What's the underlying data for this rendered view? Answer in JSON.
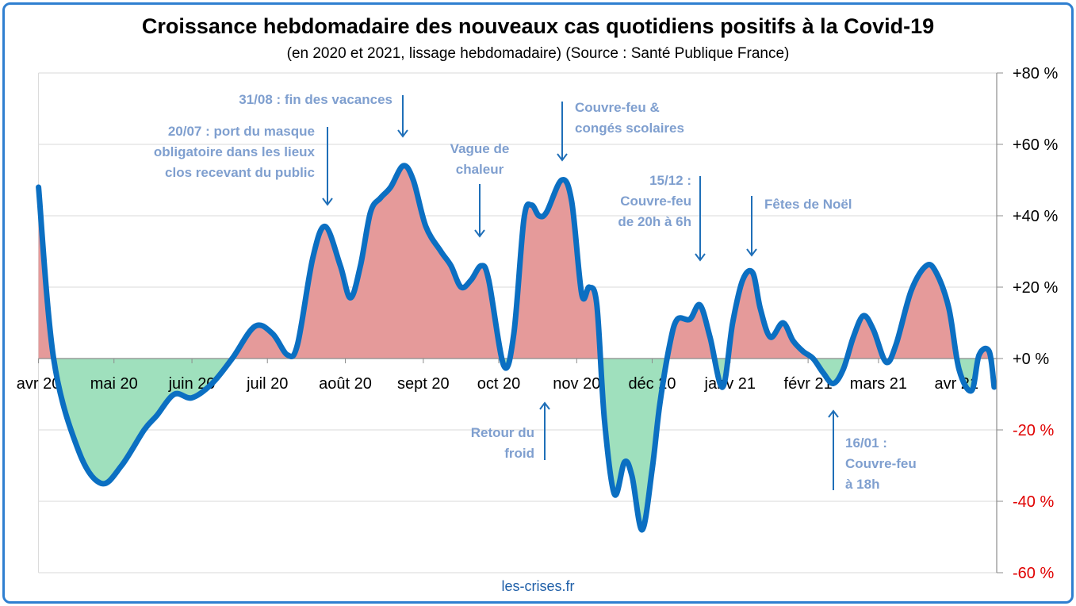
{
  "colors": {
    "line": "#0b6fc2",
    "positive_fill": "#e59a9a",
    "negative_fill": "#9fe0bd",
    "annotation_text": "#7f9fcf",
    "arrow": "#1f6fb8",
    "negative_tick_label": "#e00000",
    "frame": "#2f7fd0"
  },
  "chart_data": {
    "type": "area",
    "title": "Croissance hebdomadaire des nouveaux cas quotidiens positifs à la Covid-19",
    "subtitle": "(en 2020 et 2021, lissage hebdomadaire) (Source : Santé Publique France)",
    "xlabel": "",
    "ylabel": "",
    "ylim": [
      -60,
      80
    ],
    "xlim": [
      "2020-04-01",
      "2021-04-17"
    ],
    "y_axis_position": "right",
    "grid": true,
    "legend": "none",
    "y_ticks": [
      "+80 %",
      "+60 %",
      "+40 %",
      "+20 %",
      "+0 %",
      "-20 %",
      "-40 %",
      "-60 %"
    ],
    "y_tick_values": [
      80,
      60,
      40,
      20,
      0,
      -20,
      -40,
      -60
    ],
    "x_ticks": [
      "avr 20",
      "mai 20",
      "juin 20",
      "juil 20",
      "août 20",
      "sept 20",
      "oct 20",
      "nov 20",
      "déc 20",
      "janv 21",
      "févr 21",
      "mars 21",
      "avr 21"
    ],
    "x_tick_dates": [
      "2020-04-01",
      "2020-05-01",
      "2020-06-01",
      "2020-07-01",
      "2020-08-01",
      "2020-09-01",
      "2020-10-01",
      "2020-11-01",
      "2020-12-01",
      "2021-01-01",
      "2021-02-01",
      "2021-03-01",
      "2021-04-01"
    ],
    "series": [
      {
        "points": [
          [
            "2020-04-01",
            48
          ],
          [
            "2020-04-07",
            0
          ],
          [
            "2020-04-17",
            -26
          ],
          [
            "2020-04-26",
            -35
          ],
          [
            "2020-05-04",
            -30
          ],
          [
            "2020-05-13",
            -20
          ],
          [
            "2020-05-18",
            -16
          ],
          [
            "2020-05-25",
            -10
          ],
          [
            "2020-06-01",
            -11
          ],
          [
            "2020-06-09",
            -7
          ],
          [
            "2020-06-17",
            0
          ],
          [
            "2020-06-26",
            9
          ],
          [
            "2020-07-03",
            7
          ],
          [
            "2020-07-09",
            1
          ],
          [
            "2020-07-13",
            4
          ],
          [
            "2020-07-19",
            28
          ],
          [
            "2020-07-24",
            37
          ],
          [
            "2020-07-30",
            26
          ],
          [
            "2020-08-03",
            17
          ],
          [
            "2020-08-07",
            26
          ],
          [
            "2020-08-11",
            41
          ],
          [
            "2020-08-15",
            45
          ],
          [
            "2020-08-19",
            48
          ],
          [
            "2020-08-24",
            54
          ],
          [
            "2020-08-28",
            50
          ],
          [
            "2020-09-02",
            37
          ],
          [
            "2020-09-08",
            30
          ],
          [
            "2020-09-12",
            26
          ],
          [
            "2020-09-16",
            20
          ],
          [
            "2020-09-20",
            22
          ],
          [
            "2020-09-24",
            26
          ],
          [
            "2020-09-27",
            22
          ],
          [
            "2020-10-03",
            -2
          ],
          [
            "2020-10-07",
            7
          ],
          [
            "2020-10-11",
            39
          ],
          [
            "2020-10-14",
            43
          ],
          [
            "2020-10-17",
            40
          ],
          [
            "2020-10-20",
            41
          ],
          [
            "2020-10-26",
            50
          ],
          [
            "2020-10-30",
            44
          ],
          [
            "2020-11-03",
            18
          ],
          [
            "2020-11-06",
            20
          ],
          [
            "2020-11-09",
            15
          ],
          [
            "2020-11-12",
            -17
          ],
          [
            "2020-11-16",
            -38
          ],
          [
            "2020-11-20",
            -29
          ],
          [
            "2020-11-23",
            -33
          ],
          [
            "2020-11-27",
            -48
          ],
          [
            "2020-12-01",
            -31
          ],
          [
            "2020-12-04",
            -13
          ],
          [
            "2020-12-08",
            4
          ],
          [
            "2020-12-11",
            11
          ],
          [
            "2020-12-16",
            11
          ],
          [
            "2020-12-20",
            15
          ],
          [
            "2020-12-24",
            6
          ],
          [
            "2020-12-29",
            -8
          ],
          [
            "2021-01-02",
            10
          ],
          [
            "2021-01-06",
            22
          ],
          [
            "2021-01-10",
            24
          ],
          [
            "2021-01-13",
            14
          ],
          [
            "2021-01-17",
            6
          ],
          [
            "2021-01-22",
            10
          ],
          [
            "2021-01-26",
            5
          ],
          [
            "2021-01-30",
            2
          ],
          [
            "2021-02-03",
            0
          ],
          [
            "2021-02-07",
            -4
          ],
          [
            "2021-02-11",
            -7
          ],
          [
            "2021-02-15",
            -3
          ],
          [
            "2021-02-19",
            6
          ],
          [
            "2021-02-23",
            12
          ],
          [
            "2021-02-27",
            8
          ],
          [
            "2021-03-04",
            -1
          ],
          [
            "2021-03-08",
            4
          ],
          [
            "2021-03-14",
            19
          ],
          [
            "2021-03-20",
            26
          ],
          [
            "2021-03-24",
            24
          ],
          [
            "2021-03-29",
            14
          ],
          [
            "2021-04-02",
            -3
          ],
          [
            "2021-04-07",
            -9
          ],
          [
            "2021-04-10",
            1
          ],
          [
            "2021-04-14",
            2
          ],
          [
            "2021-04-16",
            -8
          ]
        ]
      }
    ],
    "annotations": [
      {
        "id": "masque",
        "lines": [
          "20/07 : port du masque",
          "obligatoire  dans  les lieux",
          "clos recevant du public"
        ],
        "arrow": "down"
      },
      {
        "id": "vacances",
        "lines": [
          "31/08 : fin des vacances"
        ],
        "arrow": "down"
      },
      {
        "id": "chaleur",
        "lines": [
          "Vague de",
          "chaleur"
        ],
        "arrow": "down"
      },
      {
        "id": "couvrefeu-conges",
        "lines": [
          "Couvre-feu  &",
          "congés scolaires"
        ],
        "arrow": "down"
      },
      {
        "id": "couvrefeu-20h",
        "lines": [
          "15/12 :",
          "Couvre-feu",
          "de 20h à 6h"
        ],
        "arrow": "down"
      },
      {
        "id": "noel",
        "lines": [
          "Fêtes de Noël"
        ],
        "arrow": "down"
      },
      {
        "id": "froid",
        "lines": [
          "Retour du",
          "froid"
        ],
        "arrow": "up"
      },
      {
        "id": "couvrefeu-18h",
        "lines": [
          "16/01 :",
          "Couvre-feu",
          "à 18h"
        ],
        "arrow": "up"
      }
    ]
  },
  "source": "les-crises.fr"
}
